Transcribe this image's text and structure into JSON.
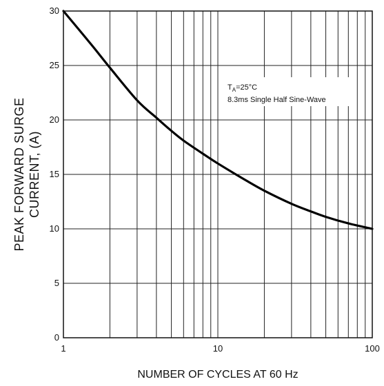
{
  "chart_data": {
    "type": "line",
    "title": "",
    "xlabel": "NUMBER OF CYCLES AT 60 Hz",
    "ylabel_lines": [
      "PEAK FORWARD SURGE",
      "CURRENT, (A)"
    ],
    "xscale": "log",
    "xlim": [
      1,
      100
    ],
    "ylim": [
      0,
      30
    ],
    "grid": true,
    "x_ticks": [
      1,
      10,
      100
    ],
    "x_tick_labels": [
      "1",
      "10",
      "100"
    ],
    "y_ticks": [
      0,
      5,
      10,
      15,
      20,
      25,
      30
    ],
    "y_tick_labels": [
      "0",
      "5",
      "10",
      "15",
      "20",
      "25",
      "30"
    ],
    "annotation": {
      "line1_main": "T",
      "line1_sub": "A",
      "line1_rest": "=25°C",
      "line2": "8.3ms Single Half Sine-Wave"
    },
    "series": [
      {
        "x": [
          1,
          1.5,
          2,
          3,
          4,
          5,
          6,
          8,
          10,
          15,
          20,
          30,
          40,
          50,
          70,
          100
        ],
        "y": [
          30,
          27,
          24.8,
          21.8,
          20.2,
          19,
          18.1,
          16.9,
          16,
          14.5,
          13.5,
          12.3,
          11.6,
          11.1,
          10.5,
          10
        ]
      }
    ]
  }
}
